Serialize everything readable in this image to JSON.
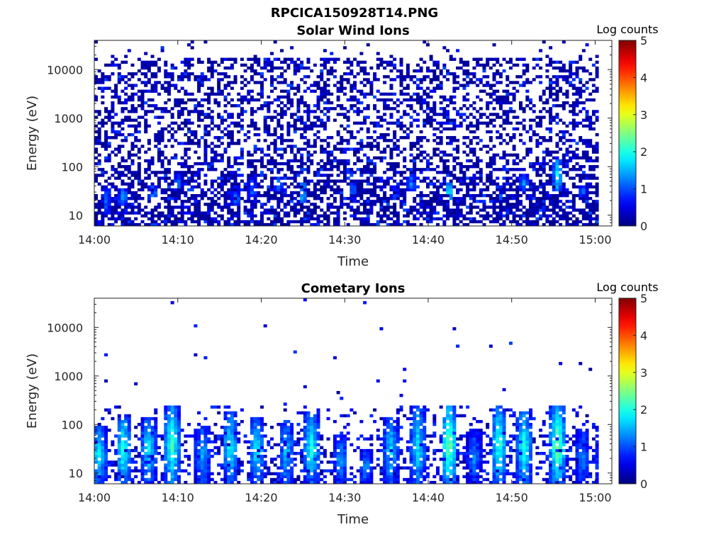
{
  "figure": {
    "title": "RPCICA150928T14.PNG"
  },
  "colormap": "jet",
  "chart_data": [
    {
      "type": "heatmap",
      "title": "Solar Wind Ions",
      "xlabel": "Time",
      "ylabel": "Energy (eV)",
      "x_ticks": [
        "14:00",
        "14:10",
        "14:20",
        "14:30",
        "14:40",
        "14:50",
        "15:00"
      ],
      "x_range": [
        "14:00",
        "15:02"
      ],
      "y_scale": "log",
      "y_ticks": [
        10,
        100,
        1000,
        10000
      ],
      "y_range": [
        6,
        40000
      ],
      "colorbar": {
        "label": "Log counts",
        "range": [
          0,
          5
        ],
        "ticks": [
          0,
          1,
          2,
          3,
          4,
          5
        ]
      },
      "pattern": "background",
      "seed": 11,
      "bursts": [
        {
          "t": 1.5,
          "lo": 10,
          "hi": 40,
          "c": 1.2
        },
        {
          "t": 3.5,
          "lo": 15,
          "hi": 35,
          "c": 1.6
        },
        {
          "t": 7.0,
          "lo": 20,
          "hi": 40,
          "c": 1.5
        },
        {
          "t": 10.0,
          "lo": 30,
          "hi": 70,
          "c": 1.3
        },
        {
          "t": 17.0,
          "lo": 15,
          "hi": 40,
          "c": 1.3
        },
        {
          "t": 19.0,
          "lo": 20,
          "hi": 60,
          "c": 1.2
        },
        {
          "t": 22.0,
          "lo": 30,
          "hi": 60,
          "c": 1.4
        },
        {
          "t": 25.0,
          "lo": 15,
          "hi": 50,
          "c": 1.8
        },
        {
          "t": 31.0,
          "lo": 20,
          "hi": 50,
          "c": 1.3
        },
        {
          "t": 36.0,
          "lo": 20,
          "hi": 40,
          "c": 1.2
        },
        {
          "t": 38.0,
          "lo": 30,
          "hi": 70,
          "c": 1.4
        },
        {
          "t": 42.5,
          "lo": 20,
          "hi": 45,
          "c": 2.1
        },
        {
          "t": 48.5,
          "lo": 20,
          "hi": 40,
          "c": 1.5
        },
        {
          "t": 51.5,
          "lo": 30,
          "hi": 70,
          "c": 1.4
        },
        {
          "t": 55.5,
          "lo": 30,
          "hi": 150,
          "c": 2.0
        },
        {
          "t": 58.5,
          "lo": 20,
          "hi": 50,
          "c": 1.2
        }
      ]
    },
    {
      "type": "heatmap",
      "title": "Cometary Ions",
      "xlabel": "Time",
      "ylabel": "Energy (eV)",
      "x_ticks": [
        "14:00",
        "14:10",
        "14:20",
        "14:30",
        "14:40",
        "14:50",
        "15:00"
      ],
      "x_range": [
        "14:00",
        "15:02"
      ],
      "y_scale": "log",
      "y_ticks": [
        10,
        100,
        1000,
        10000
      ],
      "y_range": [
        6,
        40000
      ],
      "colorbar": {
        "label": "Log counts",
        "range": [
          0,
          5
        ],
        "ticks": [
          0,
          1,
          2,
          3,
          4,
          5
        ]
      },
      "pattern": "bursts",
      "seed": 29,
      "bursts": [
        {
          "t": 0.5,
          "lo": 6,
          "hi": 100,
          "c": 2.0
        },
        {
          "t": 3.5,
          "lo": 6,
          "hi": 150,
          "c": 2.2
        },
        {
          "t": 6.5,
          "lo": 6,
          "hi": 150,
          "c": 1.9
        },
        {
          "t": 9.3,
          "lo": 6,
          "hi": 250,
          "c": 2.3
        },
        {
          "t": 13.0,
          "lo": 6,
          "hi": 100,
          "c": 1.6
        },
        {
          "t": 16.3,
          "lo": 6,
          "hi": 180,
          "c": 2.0
        },
        {
          "t": 19.5,
          "lo": 6,
          "hi": 150,
          "c": 1.9
        },
        {
          "t": 23.0,
          "lo": 6,
          "hi": 120,
          "c": 1.7
        },
        {
          "t": 26.0,
          "lo": 6,
          "hi": 180,
          "c": 2.1
        },
        {
          "t": 29.5,
          "lo": 6,
          "hi": 60,
          "c": 1.5
        },
        {
          "t": 32.5,
          "lo": 6,
          "hi": 30,
          "c": 1.4
        },
        {
          "t": 35.5,
          "lo": 6,
          "hi": 150,
          "c": 1.8
        },
        {
          "t": 38.8,
          "lo": 6,
          "hi": 250,
          "c": 1.9
        },
        {
          "t": 42.5,
          "lo": 6,
          "hi": 250,
          "c": 2.6
        },
        {
          "t": 45.5,
          "lo": 6,
          "hi": 80,
          "c": 1.3
        },
        {
          "t": 48.5,
          "lo": 6,
          "hi": 250,
          "c": 2.2
        },
        {
          "t": 51.5,
          "lo": 6,
          "hi": 200,
          "c": 2.1
        },
        {
          "t": 55.5,
          "lo": 6,
          "hi": 250,
          "c": 2.6
        },
        {
          "t": 58.5,
          "lo": 6,
          "hi": 80,
          "c": 1.3
        },
        {
          "t": 61.0,
          "lo": 6,
          "hi": 40,
          "c": 1.5
        }
      ]
    }
  ]
}
